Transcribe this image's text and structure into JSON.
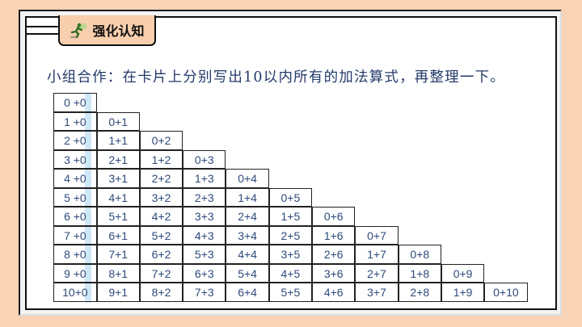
{
  "section_tab": {
    "title": "强化认知",
    "icon": "running-man-icon"
  },
  "instruction": "小组合作：在卡片上分别写出10以内所有的加法算式，再整理一下。",
  "table": {
    "rows": [
      [
        "0 +0"
      ],
      [
        "1 +0",
        "0+1"
      ],
      [
        "2 +0",
        "1+1",
        "0+2"
      ],
      [
        "3 +0",
        "2+1",
        "1+2",
        "0+3"
      ],
      [
        "4 +0",
        "3+1",
        "2+2",
        "1+3",
        "0+4"
      ],
      [
        "5 +0",
        "4+1",
        "3+2",
        "2+3",
        "1+4",
        "0+5"
      ],
      [
        "6 +0",
        "5+1",
        "4+2",
        "3+3",
        "2+4",
        "1+5",
        "0+6"
      ],
      [
        "7 +0",
        "6+1",
        "5+2",
        "4+3",
        "3+4",
        "2+5",
        "1+6",
        "0+7"
      ],
      [
        "8 +0",
        "7+1",
        "6+2",
        "5+3",
        "4+4",
        "3+5",
        "2+6",
        "1+7",
        "0+8"
      ],
      [
        "9 +0",
        "8+1",
        "7+2",
        "6+3",
        "5+4",
        "4+5",
        "3+6",
        "2+7",
        "1+8",
        "0+9"
      ],
      [
        "10+0",
        "9+1",
        "8+2",
        "7+3",
        "6+4",
        "5+5",
        "4+6",
        "3+7",
        "2+8",
        "1+9",
        "0+10"
      ]
    ]
  },
  "colors": {
    "background": "#f9d3b5",
    "text": "#2e4a7a",
    "highlight": "#cfe8f7"
  }
}
